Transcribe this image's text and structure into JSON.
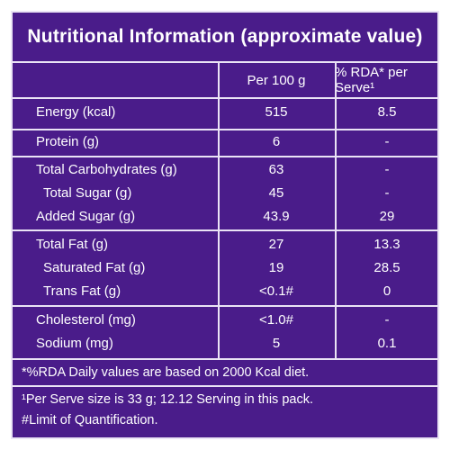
{
  "title": "Nutritional Information (approximate value)",
  "headers": {
    "per100": "Per 100 g",
    "rda": "% RDA* per Serve¹"
  },
  "rows": [
    {
      "name": "Energy (kcal)",
      "per100": "515",
      "rda": "8.5"
    },
    {
      "name": "Protein (g)",
      "per100": "6",
      "rda": "-"
    },
    {
      "name": "Total Carbohydrates (g)",
      "per100": "63",
      "rda": "-"
    },
    {
      "name": "Total Sugar (g)",
      "per100": "45",
      "rda": "-"
    },
    {
      "name": "Added Sugar (g)",
      "per100": "43.9",
      "rda": "29"
    },
    {
      "name": "Total Fat (g)",
      "per100": "27",
      "rda": "13.3"
    },
    {
      "name": "Saturated Fat (g)",
      "per100": "19",
      "rda": "28.5"
    },
    {
      "name": "Trans Fat (g)",
      "per100": "<0.1#",
      "rda": "0"
    },
    {
      "name": "Cholesterol (mg)",
      "per100": "<1.0#",
      "rda": "-"
    },
    {
      "name": "Sodium (mg)",
      "per100": "5",
      "rda": "0.1"
    }
  ],
  "notes": {
    "rda_note": "*%RDA Daily values are based on 2000 Kcal diet.",
    "serve_note": "¹Per Serve size is 33 g; 12.12 Serving in this pack.",
    "limit_note": "#Limit of Quantification."
  },
  "colors": {
    "background": "#4a1c8a",
    "lines": "#eae3f5",
    "text": "#ffffff"
  }
}
